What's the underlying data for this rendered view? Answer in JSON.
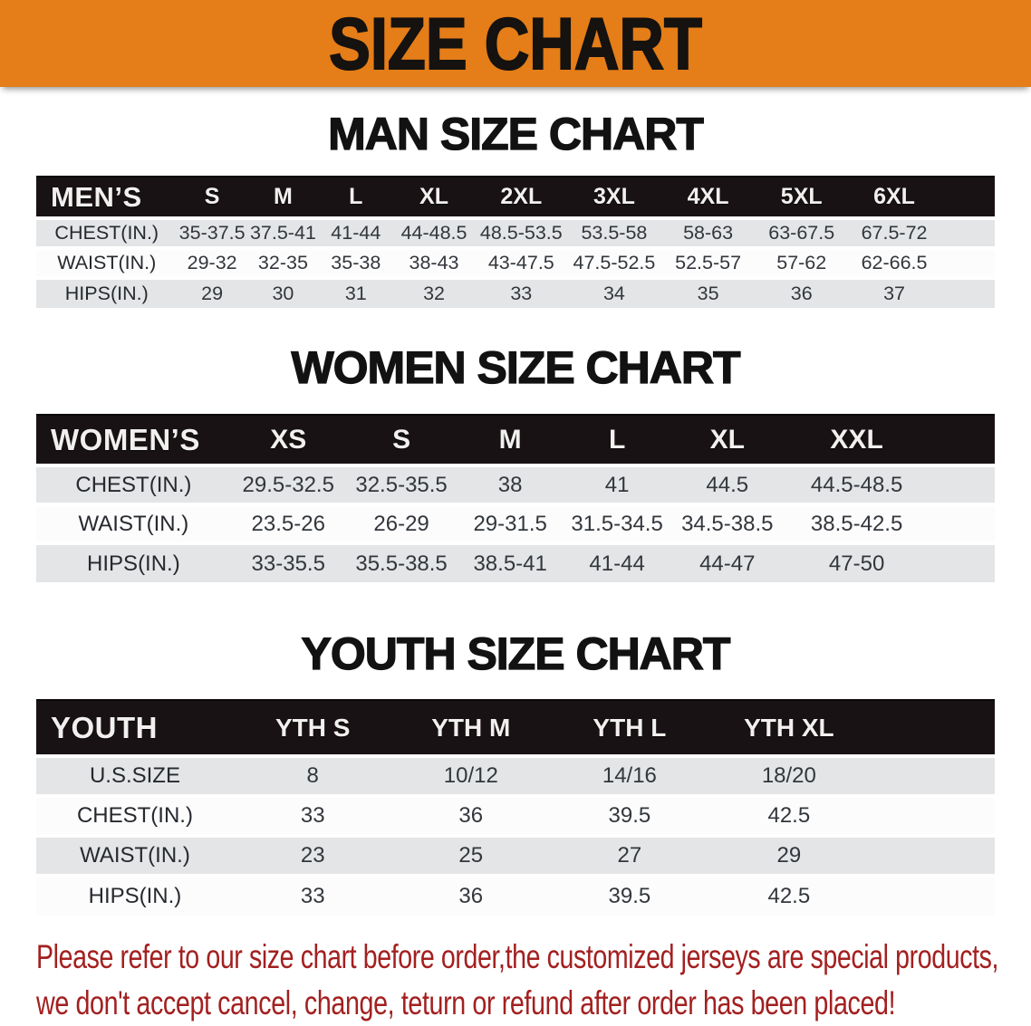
{
  "banner": {
    "title": "SIZE CHART"
  },
  "colors": {
    "banner_orange": "#e57d18",
    "table_header_black": "#181214",
    "row_gray": "#e3e5e7",
    "row_white": "#fcfcfc",
    "disclaimer_red": "#a32020"
  },
  "sections": [
    {
      "heading": "MAN SIZE CHART",
      "corner_label": "MEN’S",
      "columns": [
        "S",
        "M",
        "L",
        "XL",
        "2XL",
        "3XL",
        "4XL",
        "5XL",
        "6XL"
      ],
      "rows": [
        {
          "label": "CHEST(IN.)",
          "values": [
            "35-37.5",
            "37.5-41",
            "41-44",
            "44-48.5",
            "48.5-53.5",
            "53.5-58",
            "58-63",
            "63-67.5",
            "67.5-72"
          ]
        },
        {
          "label": "WAIST(IN.)",
          "values": [
            "29-32",
            "32-35",
            "35-38",
            "38-43",
            "43-47.5",
            "47.5-52.5",
            "52.5-57",
            "57-62",
            "62-66.5"
          ]
        },
        {
          "label": "HIPS(IN.)",
          "values": [
            "29",
            "30",
            "31",
            "32",
            "33",
            "34",
            "35",
            "36",
            "37"
          ]
        }
      ]
    },
    {
      "heading": "WOMEN SIZE CHART",
      "corner_label": "WOMEN’S",
      "columns": [
        "XS",
        "S",
        "M",
        "L",
        "XL",
        "XXL"
      ],
      "rows": [
        {
          "label": "CHEST(IN.)",
          "values": [
            "29.5-32.5",
            "32.5-35.5",
            "38",
            "41",
            "44.5",
            "44.5-48.5"
          ]
        },
        {
          "label": "WAIST(IN.)",
          "values": [
            "23.5-26",
            "26-29",
            "29-31.5",
            "31.5-34.5",
            "34.5-38.5",
            "38.5-42.5"
          ]
        },
        {
          "label": "HIPS(IN.)",
          "values": [
            "33-35.5",
            "35.5-38.5",
            "38.5-41",
            "41-44",
            "44-47",
            "47-50"
          ]
        }
      ]
    },
    {
      "heading": "YOUTH SIZE CHART",
      "corner_label": "YOUTH",
      "columns": [
        "YTH S",
        "YTH M",
        "YTH L",
        "YTH XL"
      ],
      "rows": [
        {
          "label": "U.S.SIZE",
          "values": [
            "8",
            "10/12",
            "14/16",
            "18/20"
          ]
        },
        {
          "label": "CHEST(IN.)",
          "values": [
            "33",
            "36",
            "39.5",
            "42.5"
          ]
        },
        {
          "label": "WAIST(IN.)",
          "values": [
            "23",
            "25",
            "27",
            "29"
          ]
        },
        {
          "label": "HIPS(IN.)",
          "values": [
            "33",
            "36",
            "39.5",
            "42.5"
          ]
        }
      ]
    }
  ],
  "disclaimer": {
    "line1": "Please refer to our size chart before order,the customized jerseys are special products,",
    "line2": "we don't accept cancel, change, teturn or refund after order has been placed!"
  }
}
